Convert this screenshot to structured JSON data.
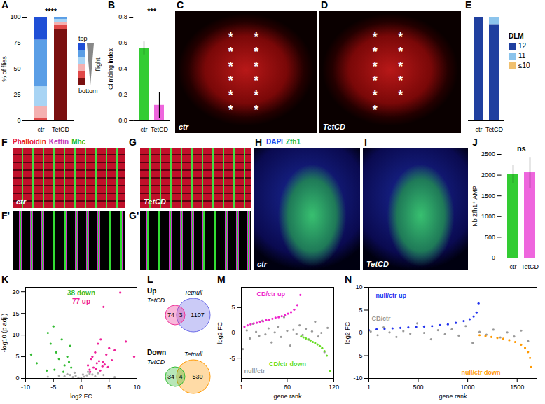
{
  "chart_data": [
    {
      "panel": "A",
      "type": "bar",
      "stacked": true,
      "categories": [
        "ctr",
        "TetCD"
      ],
      "series": [
        {
          "color": "#7a1010",
          "values": [
            0,
            88
          ]
        },
        {
          "color": "#e04848",
          "values": [
            3,
            4
          ]
        },
        {
          "color": "#f4b0b0",
          "values": [
            11,
            3
          ]
        },
        {
          "color": "#a8d4f4",
          "values": [
            19,
            3
          ]
        },
        {
          "color": "#5a9ee6",
          "values": [
            45,
            2
          ]
        },
        {
          "color": "#1f4fd6",
          "values": [
            22,
            0
          ]
        }
      ],
      "ylabel": "% of flies",
      "ylim": [
        0,
        100
      ],
      "yticks": [
        0,
        25,
        50,
        75,
        100
      ],
      "annotations": [
        "****",
        "top",
        "flight",
        "bottom"
      ]
    },
    {
      "panel": "B",
      "type": "bar",
      "categories": [
        "ctr",
        "TetCD"
      ],
      "values": [
        0.56,
        0.12
      ],
      "errors": [
        0.05,
        0.1
      ],
      "colors": [
        "#33cc33",
        "#ee66dd"
      ],
      "ylabel": "Climbing index",
      "ylim": [
        0,
        0.8
      ],
      "yticks": [
        {
          "value": 0,
          "label": "0.0"
        },
        {
          "value": 0.2,
          "label": "0.2"
        },
        {
          "value": 0.4,
          "label": "0.4"
        },
        {
          "value": 0.6,
          "label": "0.6"
        },
        {
          "value": 0.8,
          "label": "0.8"
        }
      ],
      "annotations": [
        "***"
      ]
    },
    {
      "panel": "C",
      "type": "image",
      "annotations": [
        "ctr"
      ],
      "asterisks": 12
    },
    {
      "panel": "D",
      "type": "image",
      "annotations": [
        "TetCD"
      ],
      "asterisks": 11
    },
    {
      "panel": "E",
      "type": "bar",
      "stacked": true,
      "categories": [
        "ctr",
        "TetCD"
      ],
      "series": [
        {
          "name": "12",
          "color": "#1f3f9f",
          "values": [
            100,
            93
          ]
        },
        {
          "name": "11",
          "color": "#8cc4ec",
          "values": [
            0,
            7
          ]
        },
        {
          "name": "≤10",
          "color": "#f0c070",
          "values": [
            0,
            0
          ]
        }
      ],
      "ylim": [
        0,
        100
      ],
      "tick_labels": "x",
      "legend": "right",
      "annotations": [
        "DLM"
      ]
    },
    {
      "panel": "F",
      "type": "image",
      "subpanel": "F'",
      "title": [
        {
          "text": "Phalloidin",
          "color": "#e8202a"
        },
        {
          "text": "Kettin",
          "color": "#c040c0"
        },
        {
          "text": "Mhc",
          "color": "#22bb22"
        }
      ],
      "annotations": [
        "ctr"
      ]
    },
    {
      "panel": "G",
      "type": "image",
      "subpanel": "G'",
      "annotations": [
        "TetCD"
      ]
    },
    {
      "panel": "H",
      "type": "image",
      "title": [
        {
          "text": "DAPI",
          "color": "#2244ee"
        },
        {
          "text": "Zfh1",
          "color": "#22bb55"
        }
      ],
      "annotations": [
        "ctr"
      ]
    },
    {
      "panel": "I",
      "type": "image",
      "annotations": [
        "TetCD"
      ]
    },
    {
      "panel": "J",
      "type": "bar",
      "categories": [
        "ctr",
        "TetCD"
      ],
      "values": [
        2020,
        2060
      ],
      "errors": [
        230,
        370
      ],
      "colors": [
        "#33cc33",
        "#ee66dd"
      ],
      "ylabel": "Nb Zfh1⁺ AMP",
      "ylim": [
        0,
        2500
      ],
      "yticks": [
        0,
        500,
        1000,
        1500,
        2000,
        2500
      ],
      "annotations": [
        "ns"
      ]
    },
    {
      "panel": "K",
      "type": "scatter",
      "xlabel": "log2 FC",
      "ylabel": "-log10 (p adj.)",
      "xlim": [
        -10,
        10
      ],
      "xticks": [
        -10,
        -5,
        0,
        5,
        10
      ],
      "ylim": [
        0,
        21
      ],
      "yticks": [
        0,
        5,
        10,
        15,
        20
      ],
      "series": [
        {
          "color": "#33bb33",
          "x": [
            -9,
            -8,
            -6,
            -5.5,
            -5,
            -4.5,
            -4,
            -3.5,
            -3,
            -2.5,
            -2,
            -1.8,
            -4.8,
            -6.2,
            -3.2,
            -2.2
          ],
          "values": [
            5.5,
            3.5,
            10.5,
            8,
            12,
            6,
            4.5,
            9,
            3,
            5,
            7.5,
            2.5,
            2,
            1.8,
            1.5,
            3.8
          ]
        },
        {
          "color": "#ee2299",
          "x": [
            1.2,
            1.5,
            1.8,
            2,
            2.2,
            2.5,
            2.8,
            3,
            3.2,
            3.5,
            3.8,
            4,
            4.2,
            4.5,
            5,
            5.5,
            6,
            7,
            8,
            9.5,
            2.6,
            3.4,
            4.8,
            1.6,
            3.9
          ],
          "values": [
            3,
            2,
            4.5,
            5,
            2.5,
            6,
            3.5,
            8,
            4,
            9,
            2.8,
            16.5,
            3.2,
            5.5,
            7,
            4.2,
            6.5,
            19.8,
            8.5,
            5,
            2.2,
            1.8,
            2.6,
            1.5,
            3.8
          ]
        },
        {
          "color": "#aaaaaa",
          "x": [
            -3,
            -2.5,
            -2,
            -1.5,
            -1,
            -0.5,
            0,
            0.5,
            1,
            1.5,
            2,
            2.5,
            3,
            -4,
            4,
            -6,
            6,
            1.2,
            -1.2,
            0.3
          ],
          "values": [
            0.5,
            1,
            0.8,
            0.3,
            0.6,
            0.2,
            0.1,
            0.4,
            0.7,
            1.1,
            0.9,
            0.5,
            1.2,
            0.6,
            0.8,
            0.4,
            0.3,
            1.5,
            1.3,
            0.9
          ]
        }
      ],
      "annotations": [
        {
          "text": "38 down",
          "color": "#33bb33"
        },
        {
          "text": "77 up",
          "color": "#ee2299"
        }
      ]
    },
    {
      "panel": "L",
      "type": "venn",
      "groups": [
        {
          "title": "Up",
          "sets": [
            "TetCD",
            "Tetnull"
          ],
          "colors": [
            "#ee3399",
            "#6a6ae8"
          ],
          "values": [
            74,
            3,
            1107
          ]
        },
        {
          "title": "Down",
          "sets": [
            "TetCD",
            "Tetnull"
          ],
          "colors": [
            "#33bb33",
            "#ff9900"
          ],
          "values": [
            34,
            4,
            530
          ]
        }
      ]
    },
    {
      "panel": "M",
      "type": "scatter",
      "xlabel": "gene rank",
      "ylabel": "log2 FC",
      "xlim": [
        1,
        120
      ],
      "xticks": [
        1,
        60,
        120
      ],
      "ylim": [
        -9,
        9
      ],
      "yticks": [
        -5,
        0,
        5
      ],
      "series": [
        {
          "name": "CD/ctr up",
          "color": "#ee22cc",
          "x": [
            1,
            5,
            9,
            13,
            17,
            21,
            25,
            29,
            33,
            37,
            41,
            45,
            49,
            53,
            57,
            61,
            65,
            69,
            73,
            77
          ],
          "values": [
            0.8,
            1.2,
            1.5,
            1.7,
            1.9,
            2.0,
            2.2,
            2.3,
            2.5,
            2.6,
            2.8,
            3.0,
            3.1,
            3.3,
            3.5,
            3.8,
            4.1,
            4.6,
            5.5,
            7.5
          ]
        },
        {
          "name": "CD/ctr down",
          "color": "#66dd22",
          "x": [
            78,
            81,
            84,
            87,
            90,
            93,
            96,
            99,
            102,
            105,
            108,
            111,
            115
          ],
          "values": [
            -0.7,
            -0.9,
            -1.1,
            -1.3,
            -1.5,
            -1.8,
            -2.0,
            -2.3,
            -2.6,
            -3.0,
            -3.6,
            -4.5,
            -7.5
          ]
        },
        {
          "name": "null/ctr",
          "color": "#999999",
          "x": [
            3,
            8,
            12,
            16,
            20,
            24,
            28,
            32,
            36,
            40,
            44,
            48,
            52,
            56,
            60,
            64,
            68,
            72,
            76,
            80,
            84,
            88,
            92,
            96,
            100,
            104,
            108,
            112
          ],
          "values": [
            -3.2,
            0.5,
            -1.1,
            1.8,
            0.2,
            -0.6,
            2.4,
            -0.3,
            0.9,
            -1.9,
            0.1,
            1.2,
            -0.8,
            3.1,
            0.4,
            -2.5,
            0.6,
            -0.2,
            1.5,
            -0.4,
            0.8,
            -1.3,
            0.3,
            2.2,
            -0.7,
            0.0,
            -3.8,
            1.0
          ]
        }
      ]
    },
    {
      "panel": "N",
      "type": "scatter",
      "xlabel": "gene rank",
      "ylabel": "log2 FC",
      "xlim": [
        1,
        1700
      ],
      "xticks": [
        1,
        500,
        1000,
        1500
      ],
      "ylim": [
        -10,
        10
      ],
      "yticks": [
        -10,
        -5,
        0,
        5,
        10
      ],
      "series": [
        {
          "name": "null/ctr up",
          "color": "#2233ee",
          "x": [
            1,
            80,
            160,
            240,
            320,
            400,
            480,
            560,
            640,
            720,
            800,
            880,
            960,
            1020,
            1060,
            1090,
            1110
          ],
          "values": [
            0.6,
            0.8,
            0.9,
            1.0,
            1.1,
            1.2,
            1.3,
            1.4,
            1.5,
            1.7,
            1.9,
            2.2,
            2.6,
            3.0,
            3.6,
            4.5,
            6.5
          ]
        },
        {
          "name": "null/ctr down",
          "color": "#ff9900",
          "x": [
            1120,
            1180,
            1240,
            1300,
            1360,
            1420,
            1480,
            1540,
            1580,
            1610,
            1630,
            1640
          ],
          "values": [
            -0.5,
            -0.7,
            -0.9,
            -1.1,
            -1.3,
            -1.6,
            -2.0,
            -2.6,
            -3.3,
            -4.2,
            -5.5,
            -7.5
          ]
        },
        {
          "name": "CD/ctr",
          "color": "#999999",
          "x": [
            20,
            90,
            150,
            210,
            280,
            350,
            420,
            490,
            560,
            630,
            700,
            770,
            840,
            910,
            980,
            1050,
            1120,
            1190,
            1260,
            1330,
            1400,
            1470,
            1540,
            1610
          ],
          "values": [
            0.3,
            -0.5,
            1.2,
            0.1,
            -0.9,
            0.4,
            -0.2,
            2.1,
            0.0,
            -1.4,
            0.6,
            -0.3,
            0.8,
            -0.6,
            1.5,
            -2.2,
            0.2,
            -0.4,
            0.7,
            -1.0,
            0.1,
            -0.8,
            0.5,
            -1.8
          ]
        }
      ]
    }
  ]
}
